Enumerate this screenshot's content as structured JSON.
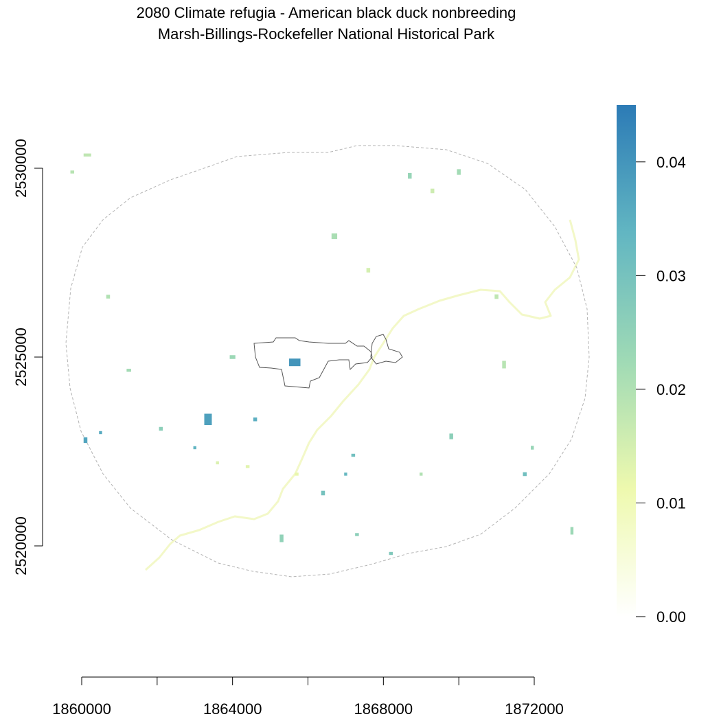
{
  "title": {
    "line1": "2080 Climate refugia - American black duck nonbreeding",
    "line2": "Marsh-Billings-Rockefeller National Historical Park"
  },
  "map": {
    "x_range": [
      1860000,
      1872000
    ],
    "y_range": [
      2520000,
      2530000
    ],
    "x_ticks": [
      {
        "value": 1860000,
        "label": "1860000"
      },
      {
        "value": 1862000,
        "label": ""
      },
      {
        "value": 1864000,
        "label": "1864000"
      },
      {
        "value": 1866000,
        "label": ""
      },
      {
        "value": 1868000,
        "label": "1868000"
      },
      {
        "value": 1870000,
        "label": ""
      },
      {
        "value": 1872000,
        "label": "1872000"
      }
    ],
    "y_ticks": [
      {
        "value": 2520000,
        "label": "2520000"
      },
      {
        "value": 2525000,
        "label": "2525000"
      },
      {
        "value": 2530000,
        "label": "2530000"
      }
    ],
    "colors": {
      "buffer_outline": "#b3b3b3",
      "park_boundary": "#555555",
      "river": "#f3f8c8"
    }
  },
  "legend": {
    "range": [
      0,
      0.045
    ],
    "ticks": [
      {
        "value": 0.0,
        "label": "0.00"
      },
      {
        "value": 0.01,
        "label": "0.01"
      },
      {
        "value": 0.02,
        "label": "0.02"
      },
      {
        "value": 0.03,
        "label": "0.03"
      },
      {
        "value": 0.04,
        "label": "0.04"
      }
    ],
    "color_stops": [
      "#ffffff",
      "#eef9ae",
      "#9fdab5",
      "#62b6c2",
      "#2c7bb6"
    ]
  },
  "raster_cells": [
    {
      "x": 1865650,
      "y": 2524860,
      "w": 300,
      "h": 200,
      "value": 0.04
    },
    {
      "x": 1863350,
      "y": 2523350,
      "w": 200,
      "h": 300,
      "value": 0.038
    },
    {
      "x": 1860100,
      "y": 2522800,
      "w": 100,
      "h": 150,
      "value": 0.037
    },
    {
      "x": 1860500,
      "y": 2523000,
      "w": 80,
      "h": 80,
      "value": 0.036
    },
    {
      "x": 1864600,
      "y": 2523350,
      "w": 100,
      "h": 100,
      "value": 0.035
    },
    {
      "x": 1867200,
      "y": 2522400,
      "w": 100,
      "h": 80,
      "value": 0.031
    },
    {
      "x": 1871750,
      "y": 2521900,
      "w": 100,
      "h": 100,
      "value": 0.031
    },
    {
      "x": 1868200,
      "y": 2519800,
      "w": 100,
      "h": 80,
      "value": 0.028
    },
    {
      "x": 1862100,
      "y": 2523100,
      "w": 100,
      "h": 100,
      "value": 0.026
    },
    {
      "x": 1866400,
      "y": 2521400,
      "w": 100,
      "h": 120,
      "value": 0.03
    },
    {
      "x": 1865300,
      "y": 2520200,
      "w": 100,
      "h": 200,
      "value": 0.025
    },
    {
      "x": 1867000,
      "y": 2521900,
      "w": 80,
      "h": 80,
      "value": 0.033
    },
    {
      "x": 1863000,
      "y": 2522600,
      "w": 80,
      "h": 80,
      "value": 0.034
    },
    {
      "x": 1861250,
      "y": 2524650,
      "w": 120,
      "h": 80,
      "value": 0.022
    },
    {
      "x": 1864000,
      "y": 2525000,
      "w": 150,
      "h": 100,
      "value": 0.023
    },
    {
      "x": 1866700,
      "y": 2528200,
      "w": 150,
      "h": 150,
      "value": 0.021
    },
    {
      "x": 1870000,
      "y": 2529900,
      "w": 100,
      "h": 150,
      "value": 0.022
    },
    {
      "x": 1868700,
      "y": 2529800,
      "w": 100,
      "h": 150,
      "value": 0.024
    },
    {
      "x": 1871200,
      "y": 2524800,
      "w": 100,
      "h": 200,
      "value": 0.019
    },
    {
      "x": 1869800,
      "y": 2522900,
      "w": 100,
      "h": 150,
      "value": 0.026
    },
    {
      "x": 1871950,
      "y": 2522600,
      "w": 80,
      "h": 100,
      "value": 0.024
    },
    {
      "x": 1873000,
      "y": 2520400,
      "w": 80,
      "h": 200,
      "value": 0.023
    },
    {
      "x": 1860700,
      "y": 2526600,
      "w": 100,
      "h": 100,
      "value": 0.02
    },
    {
      "x": 1860150,
      "y": 2530350,
      "w": 200,
      "h": 80,
      "value": 0.018
    },
    {
      "x": 1859750,
      "y": 2529900,
      "w": 100,
      "h": 80,
      "value": 0.019
    },
    {
      "x": 1871000,
      "y": 2526600,
      "w": 100,
      "h": 120,
      "value": 0.018
    },
    {
      "x": 1867600,
      "y": 2527300,
      "w": 100,
      "h": 120,
      "value": 0.015
    },
    {
      "x": 1869300,
      "y": 2529400,
      "w": 100,
      "h": 120,
      "value": 0.016
    },
    {
      "x": 1865700,
      "y": 2521900,
      "w": 100,
      "h": 80,
      "value": 0.012
    },
    {
      "x": 1864400,
      "y": 2522100,
      "w": 100,
      "h": 80,
      "value": 0.013
    },
    {
      "x": 1863600,
      "y": 2522200,
      "w": 80,
      "h": 80,
      "value": 0.014
    },
    {
      "x": 1867300,
      "y": 2520300,
      "w": 100,
      "h": 80,
      "value": 0.026
    },
    {
      "x": 1869000,
      "y": 2521900,
      "w": 80,
      "h": 80,
      "value": 0.02
    }
  ]
}
